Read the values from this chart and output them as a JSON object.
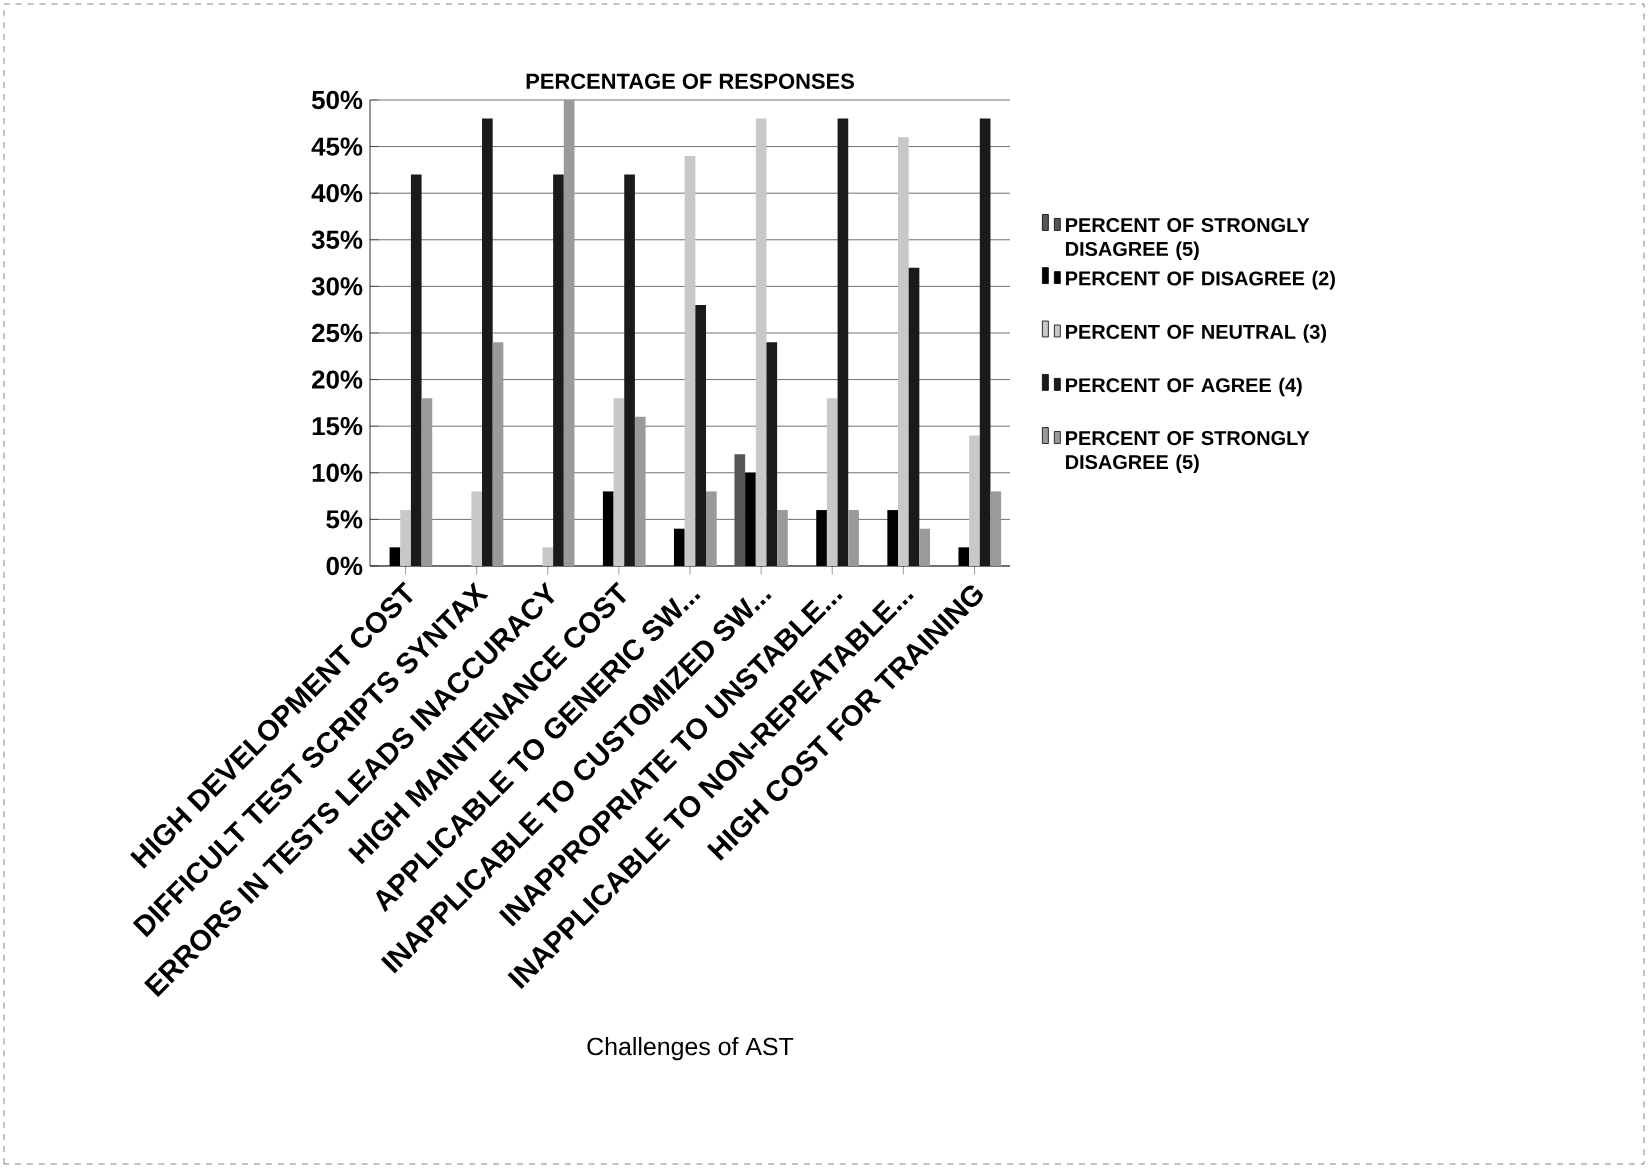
{
  "chart_data": {
    "type": "bar",
    "title": "PERCENTAGE OF RESPONSES",
    "xlabel": "Challenges of AST",
    "categories": [
      "HIGH DEVELOPMENT COST",
      "DIFFICULT TEST SCRIPTS SYNTAX",
      "ERRORS IN TESTS LEADS INACCURACY",
      "HIGH MAINTENANCE COST",
      "APPLICABLE TO GENERIC SW...",
      "INAPPLICABLE TO CUSTOMIZED SW...",
      "INAPPROPRIATE TO UNSTABLE...",
      "INAPPLICABLE TO NON-REPEATABLE...",
      "HIGH COST FOR TRAINING"
    ],
    "series": [
      {
        "name": "PERCENT OF STRONGLY DISAGREE (5)",
        "color": "#555555",
        "values": [
          0,
          0,
          0,
          0,
          0,
          12,
          0,
          0,
          0
        ]
      },
      {
        "name": "PERCENT OF  DISAGREE (2)",
        "color": "#000000",
        "values": [
          2,
          0,
          0,
          8,
          4,
          10,
          6,
          6,
          2
        ]
      },
      {
        "name": "PERCENT OF  NEUTRAL (3)",
        "color": "#c8c8c8",
        "values": [
          6,
          8,
          2,
          18,
          44,
          48,
          18,
          46,
          14
        ]
      },
      {
        "name": "PERCENT OF  AGREE (4)",
        "color": "#1a1a1a",
        "values": [
          42,
          48,
          42,
          42,
          28,
          24,
          48,
          32,
          48
        ]
      },
      {
        "name": "PERCENT OF STRONGLY DISAGREE (5)",
        "color": "#9a9a9a",
        "values": [
          18,
          24,
          50,
          16,
          8,
          6,
          6,
          4,
          8
        ]
      }
    ],
    "ylim": [
      0,
      50
    ],
    "yticks": [
      {
        "value": 0,
        "label": "0%"
      },
      {
        "value": 5,
        "label": "5%"
      },
      {
        "value": 10,
        "label": "10%"
      },
      {
        "value": 15,
        "label": "15%"
      },
      {
        "value": 20,
        "label": "20%"
      },
      {
        "value": 25,
        "label": "25%"
      },
      {
        "value": 30,
        "label": "30%"
      },
      {
        "value": 35,
        "label": "35%"
      },
      {
        "value": 40,
        "label": "40%"
      },
      {
        "value": 45,
        "label": "45%"
      },
      {
        "value": 50,
        "label": "50%"
      }
    ],
    "grid": "y",
    "legend": "right"
  }
}
